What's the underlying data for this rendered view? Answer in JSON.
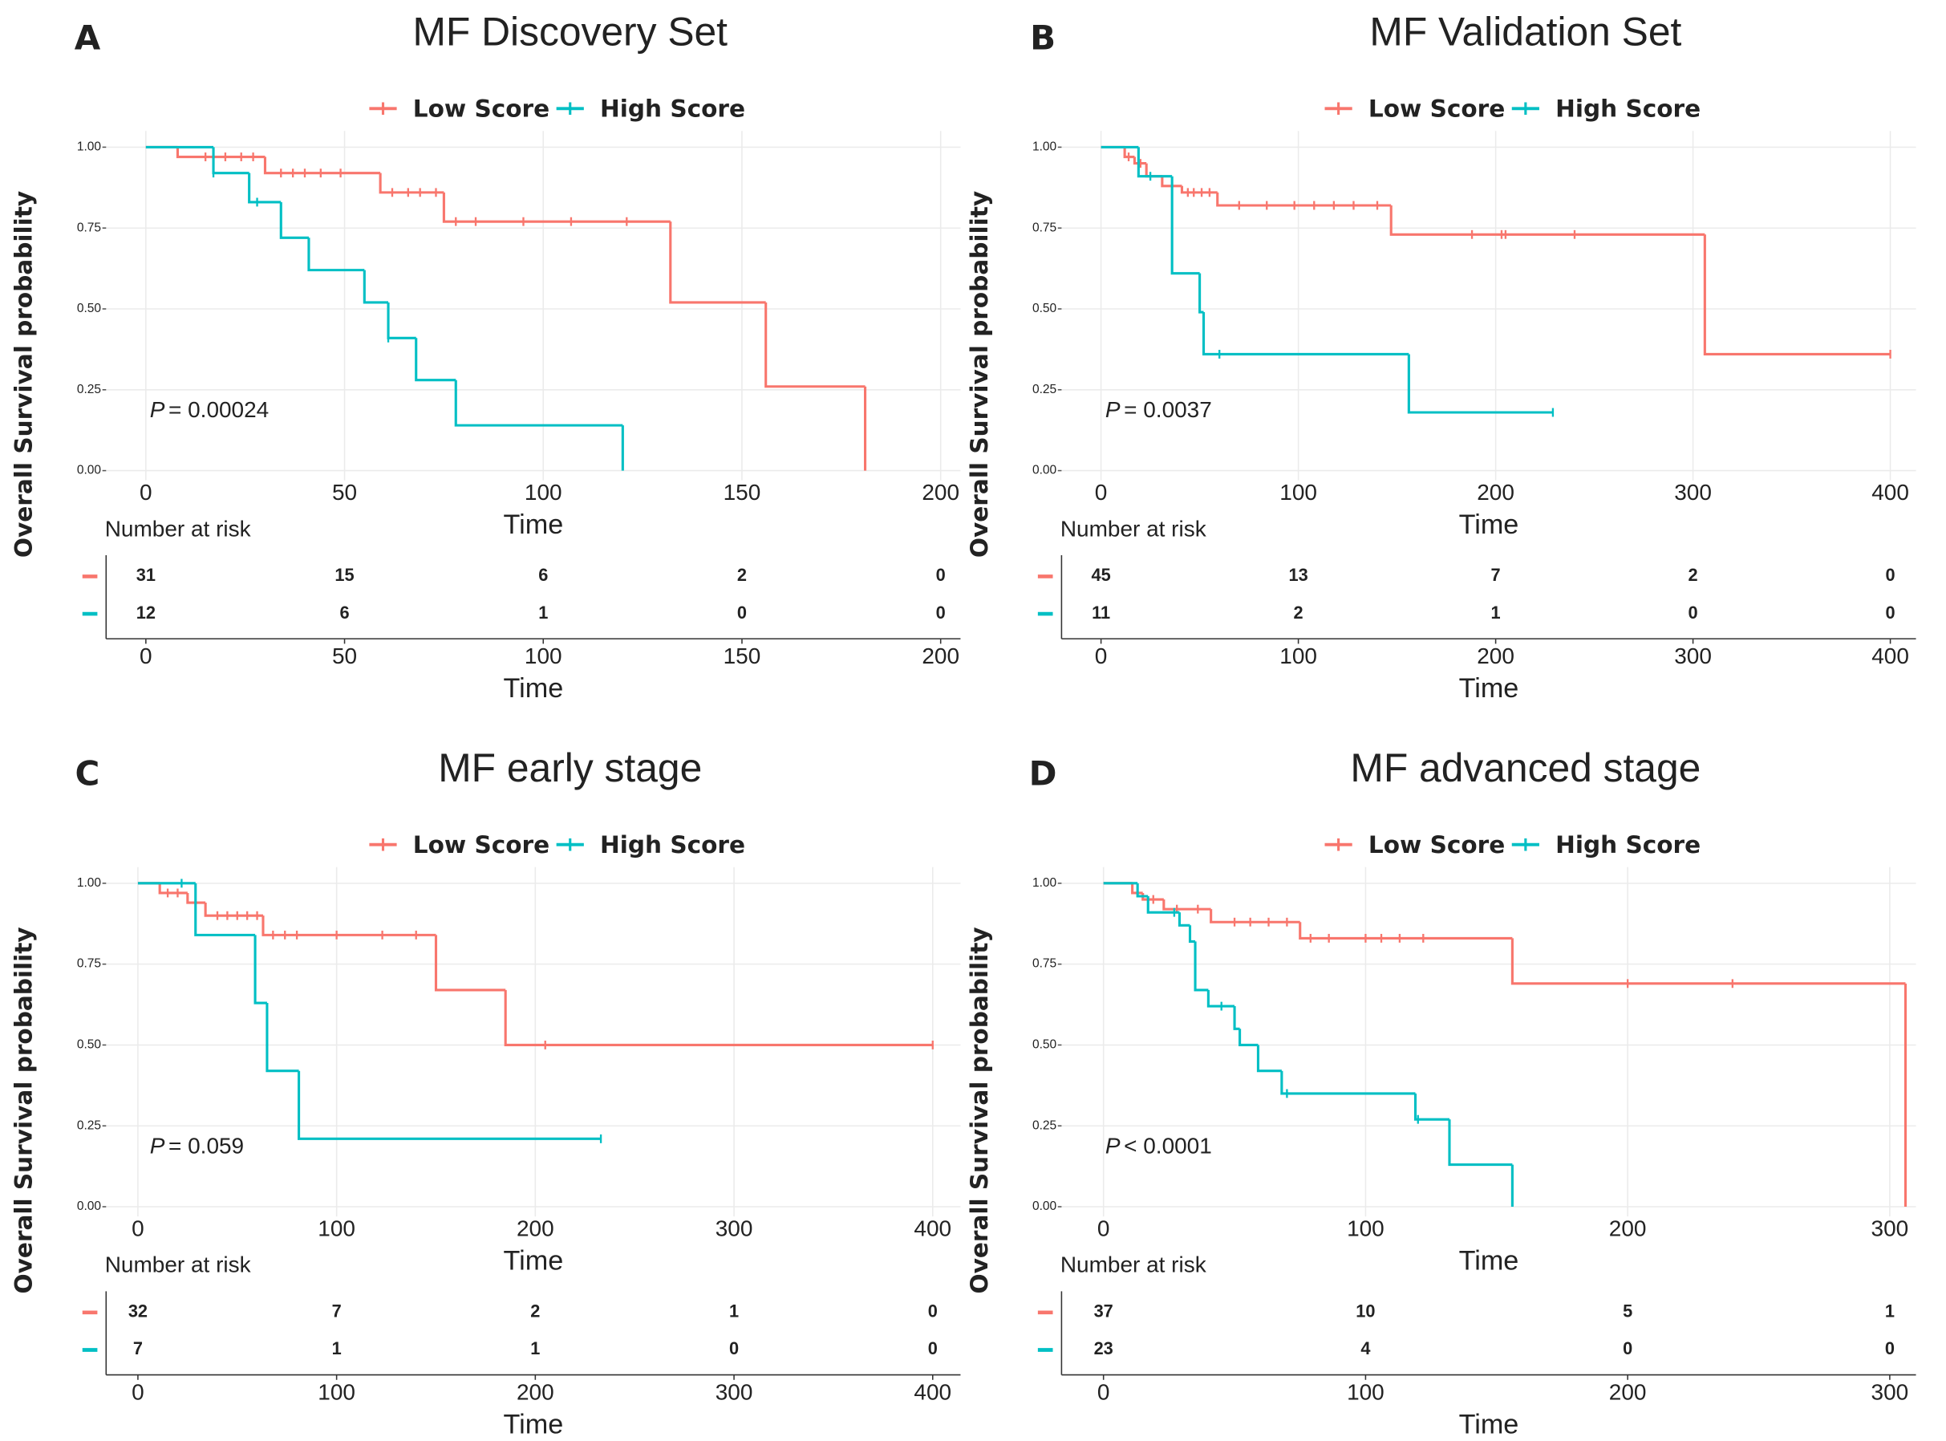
{
  "chart_data": [
    {
      "type": "survival",
      "panel": "A",
      "title": "MF Discovery Set",
      "xlabel": "Time",
      "ylabel": "Overall Survival probability",
      "xlim": [
        -10,
        205
      ],
      "xticks": [
        0,
        50,
        100,
        150,
        200
      ],
      "ylim": [
        -0.03,
        1.05
      ],
      "yticks": [
        {
          "value": 0,
          "label": "0.00"
        },
        {
          "value": 0.25,
          "label": "0.25"
        },
        {
          "value": 0.5,
          "label": "0.50"
        },
        {
          "value": 0.75,
          "label": "0.75"
        },
        {
          "value": 1,
          "label": "1.00"
        }
      ],
      "grid": true,
      "p_symbol": "P",
      "p_text": "= 0.00024",
      "risk_title": "Number at risk",
      "risk_xlabel": "Time",
      "series": [
        {
          "name": "Low Score",
          "color": "#F8766D",
          "x": [
            0,
            8,
            30,
            59,
            75,
            132,
            156,
            181
          ],
          "values": [
            1,
            0.97,
            0.92,
            0.86,
            0.77,
            0.52,
            0.26,
            0
          ],
          "censor_x": [
            15,
            20,
            24,
            27,
            34,
            37,
            40,
            44,
            49,
            62,
            66,
            69,
            73,
            78,
            83,
            95,
            107,
            121
          ],
          "censor_values": [
            0.97,
            0.97,
            0.97,
            0.97,
            0.92,
            0.92,
            0.92,
            0.92,
            0.92,
            0.86,
            0.86,
            0.86,
            0.86,
            0.77,
            0.77,
            0.77,
            0.77,
            0.77
          ],
          "at_risk": [
            31,
            15,
            6,
            2,
            0
          ]
        },
        {
          "name": "High Score",
          "color": "#00BFC4",
          "x": [
            0,
            17,
            26,
            34,
            41,
            55,
            61,
            68,
            78,
            120
          ],
          "values": [
            1,
            0.92,
            0.83,
            0.72,
            0.62,
            0.52,
            0.41,
            0.28,
            0.14,
            0
          ],
          "censor_x": [
            17,
            28,
            61
          ],
          "censor_values": [
            0.92,
            0.83,
            0.41
          ],
          "at_risk": [
            12,
            6,
            1,
            0,
            0
          ]
        }
      ]
    },
    {
      "type": "survival",
      "panel": "B",
      "title": "MF Validation Set",
      "xlabel": "Time",
      "ylabel": "Overall Survival probability",
      "xlim": [
        -20,
        413
      ],
      "xticks": [
        0,
        100,
        200,
        300,
        400
      ],
      "ylim": [
        -0.03,
        1.05
      ],
      "yticks": [
        {
          "value": 0,
          "label": "0.00"
        },
        {
          "value": 0.25,
          "label": "0.25"
        },
        {
          "value": 0.5,
          "label": "0.50"
        },
        {
          "value": 0.75,
          "label": "0.75"
        },
        {
          "value": 1,
          "label": "1.00"
        }
      ],
      "grid": true,
      "p_symbol": "P",
      "p_text": "= 0.0037",
      "risk_title": "Number at risk",
      "risk_xlabel": "Time",
      "series": [
        {
          "name": "Low Score",
          "color": "#F8766D",
          "x": [
            0,
            12,
            17,
            23,
            31,
            41,
            59,
            147,
            306,
            400
          ],
          "values": [
            1,
            0.97,
            0.95,
            0.91,
            0.88,
            0.86,
            0.82,
            0.73,
            0.36,
            0.36
          ],
          "censor_x": [
            14,
            20,
            44,
            47,
            51,
            55,
            70,
            84,
            98,
            108,
            118,
            128,
            140,
            188,
            203,
            205,
            240,
            400
          ],
          "censor_values": [
            0.97,
            0.95,
            0.86,
            0.86,
            0.86,
            0.86,
            0.82,
            0.82,
            0.82,
            0.82,
            0.82,
            0.82,
            0.82,
            0.73,
            0.73,
            0.73,
            0.73,
            0.36
          ],
          "at_risk": [
            45,
            13,
            7,
            2,
            0
          ]
        },
        {
          "name": "High Score",
          "color": "#00BFC4",
          "x": [
            0,
            19,
            36,
            50,
            52,
            156,
            229
          ],
          "values": [
            1,
            0.91,
            0.61,
            0.49,
            0.36,
            0.18,
            0.18
          ],
          "censor_x": [
            25,
            60,
            229
          ],
          "censor_values": [
            0.91,
            0.36,
            0.18
          ],
          "at_risk": [
            11,
            2,
            1,
            0,
            0
          ]
        }
      ]
    },
    {
      "type": "survival",
      "panel": "C",
      "title": "MF early stage",
      "xlabel": "Time",
      "ylabel": "Overall Survival probability",
      "xlim": [
        -16,
        414
      ],
      "xticks": [
        0,
        100,
        200,
        300,
        400
      ],
      "ylim": [
        -0.03,
        1.05
      ],
      "yticks": [
        {
          "value": 0,
          "label": "0.00"
        },
        {
          "value": 0.25,
          "label": "0.25"
        },
        {
          "value": 0.5,
          "label": "0.50"
        },
        {
          "value": 0.75,
          "label": "0.75"
        },
        {
          "value": 1,
          "label": "1.00"
        }
      ],
      "grid": true,
      "p_symbol": "P",
      "p_text": "= 0.059",
      "risk_title": "Number at risk",
      "risk_xlabel": "Time",
      "series": [
        {
          "name": "Low Score",
          "color": "#F8766D",
          "x": [
            0,
            11,
            25,
            34,
            63,
            150,
            185,
            400
          ],
          "values": [
            1,
            0.97,
            0.94,
            0.9,
            0.84,
            0.67,
            0.5,
            0.5
          ],
          "censor_x": [
            15,
            20,
            40,
            45,
            50,
            55,
            60,
            68,
            74,
            80,
            100,
            123,
            140,
            205,
            400
          ],
          "censor_values": [
            0.97,
            0.97,
            0.9,
            0.9,
            0.9,
            0.9,
            0.9,
            0.84,
            0.84,
            0.84,
            0.84,
            0.84,
            0.84,
            0.5,
            0.5
          ],
          "at_risk": [
            32,
            7,
            2,
            1,
            0
          ]
        },
        {
          "name": "High Score",
          "color": "#00BFC4",
          "x": [
            0,
            29,
            59,
            65,
            81,
            233
          ],
          "values": [
            1,
            0.84,
            0.63,
            0.42,
            0.21,
            0.21
          ],
          "censor_x": [
            22,
            233
          ],
          "censor_values": [
            1,
            0.21
          ],
          "at_risk": [
            7,
            1,
            1,
            0,
            0
          ]
        }
      ]
    },
    {
      "type": "survival",
      "panel": "D",
      "title": "MF advanced stage",
      "xlabel": "Time",
      "ylabel": "Overall Survival probability",
      "xlim": [
        -16,
        310
      ],
      "xticks": [
        0,
        100,
        200,
        300
      ],
      "ylim": [
        -0.03,
        1.05
      ],
      "yticks": [
        {
          "value": 0,
          "label": "0.00"
        },
        {
          "value": 0.25,
          "label": "0.25"
        },
        {
          "value": 0.5,
          "label": "0.50"
        },
        {
          "value": 0.75,
          "label": "0.75"
        },
        {
          "value": 1,
          "label": "1.00"
        }
      ],
      "grid": true,
      "p_symbol": "P",
      "p_text": "< 0.0001",
      "risk_title": "Number at risk",
      "risk_xlabel": "Time",
      "series": [
        {
          "name": "Low Score",
          "color": "#F8766D",
          "x": [
            0,
            11,
            15,
            23,
            41,
            75,
            156,
            306
          ],
          "values": [
            1,
            0.97,
            0.95,
            0.92,
            0.88,
            0.83,
            0.69,
            0
          ],
          "censor_x": [
            13,
            19,
            28,
            36,
            50,
            56,
            63,
            70,
            79,
            86,
            100,
            106,
            113,
            122,
            200,
            240
          ],
          "censor_values": [
            0.97,
            0.95,
            0.92,
            0.92,
            0.88,
            0.88,
            0.88,
            0.88,
            0.83,
            0.83,
            0.83,
            0.83,
            0.83,
            0.83,
            0.69,
            0.69
          ],
          "at_risk": [
            37,
            10,
            5,
            1
          ]
        },
        {
          "name": "High Score",
          "color": "#00BFC4",
          "x": [
            0,
            13,
            17,
            29,
            33,
            35,
            40,
            50,
            52,
            59,
            68,
            119,
            132,
            156
          ],
          "values": [
            1,
            0.96,
            0.91,
            0.87,
            0.82,
            0.67,
            0.62,
            0.55,
            0.5,
            0.42,
            0.35,
            0.27,
            0.13,
            0
          ],
          "censor_x": [
            27,
            45,
            70,
            120
          ],
          "censor_values": [
            0.91,
            0.62,
            0.35,
            0.27
          ],
          "at_risk": [
            23,
            4,
            0,
            0
          ]
        }
      ]
    }
  ]
}
